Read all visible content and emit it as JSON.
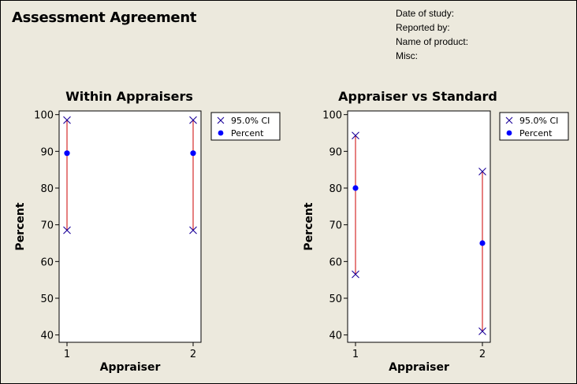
{
  "header": {
    "title": "Assessment Agreement",
    "meta": [
      "Date of study:",
      "Reported by:",
      "Name of product:",
      "Misc:"
    ]
  },
  "colors": {
    "ci": "#1a0099",
    "percent": "#0000ff",
    "line": "#cc0000"
  },
  "chart_data": [
    {
      "type": "scatter",
      "title": "Within Appraisers",
      "xlabel": "Appraiser",
      "ylabel": "Percent",
      "categories": [
        "1",
        "2"
      ],
      "ylim": [
        38,
        101
      ],
      "yticks": [
        40,
        50,
        60,
        70,
        80,
        90,
        100
      ],
      "legend": "right",
      "legend_entries": [
        "95.0% CI",
        "Percent"
      ],
      "series": [
        {
          "name": "Percent",
          "values": [
            89.5,
            89.5
          ]
        },
        {
          "name": "95.0% CI",
          "lower": [
            68.5,
            68.5
          ],
          "upper": [
            98.5,
            98.5
          ]
        }
      ]
    },
    {
      "type": "scatter",
      "title": "Appraiser vs Standard",
      "xlabel": "Appraiser",
      "ylabel": "Percent",
      "categories": [
        "1",
        "2"
      ],
      "ylim": [
        38,
        101
      ],
      "yticks": [
        40,
        50,
        60,
        70,
        80,
        90,
        100
      ],
      "legend": "right",
      "legend_entries": [
        "95.0% CI",
        "Percent"
      ],
      "series": [
        {
          "name": "Percent",
          "values": [
            80,
            65
          ]
        },
        {
          "name": "95.0% CI",
          "lower": [
            56.5,
            41
          ],
          "upper": [
            94.3,
            84.5
          ]
        }
      ]
    }
  ]
}
